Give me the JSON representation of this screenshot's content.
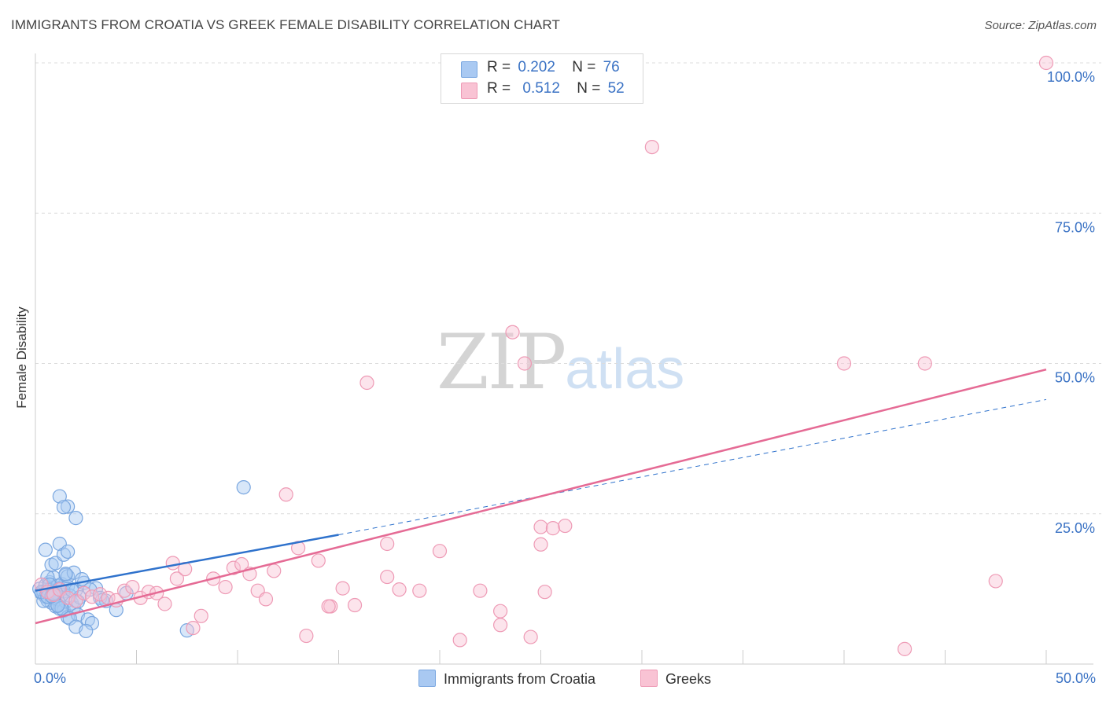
{
  "title": "IMMIGRANTS FROM CROATIA VS GREEK FEMALE DISABILITY CORRELATION CHART",
  "source": "Source: ZipAtlas.com",
  "watermark": {
    "part1": "ZIP",
    "part2": "atlas"
  },
  "legend": {
    "rows": [
      {
        "r_label": "R =",
        "r_value": "0.202",
        "n_label": "N =",
        "n_value": "76",
        "color": "#a9c9f2",
        "border": "#7aa7e0"
      },
      {
        "r_label": "R =",
        "r_value": "0.512",
        "n_label": "N =",
        "n_value": "52",
        "color": "#f9c3d4",
        "border": "#ee9ab5"
      }
    ]
  },
  "chart_data": {
    "type": "scatter",
    "title": "IMMIGRANTS FROM CROATIA VS GREEK FEMALE DISABILITY CORRELATION CHART",
    "xlabel": "",
    "ylabel": "Female Disability",
    "xlim": [
      0,
      50
    ],
    "ylim": [
      0,
      100
    ],
    "x_tick_labels": [
      "0.0%",
      "50.0%"
    ],
    "y_tick_labels": [
      "100.0%",
      "75.0%",
      "50.0%",
      "25.0%"
    ],
    "y_ticks": [
      100,
      75,
      50,
      25
    ],
    "x_minor_ticks": [
      0,
      5,
      10,
      15,
      20,
      25,
      30,
      35,
      40,
      45,
      50
    ],
    "grid": true,
    "legend_position": "top-center",
    "series": [
      {
        "name": "Immigrants from Croatia",
        "color": "#7aa7e0",
        "fill": "#a9c9f2",
        "line_color": "#2f72cc",
        "trend": {
          "x0": 0,
          "y0": 12.2,
          "x1": 15,
          "y1": 21.5,
          "dashed_to_x": 50,
          "dashed_to_y": 44.0
        },
        "x": [
          0.2,
          0.3,
          0.4,
          0.5,
          0.5,
          0.6,
          0.6,
          0.7,
          0.7,
          0.8,
          0.8,
          0.9,
          0.9,
          1.0,
          1.0,
          1.1,
          1.1,
          1.2,
          1.2,
          1.3,
          1.3,
          1.4,
          1.4,
          1.5,
          1.5,
          1.6,
          1.6,
          1.7,
          1.8,
          1.9,
          2.0,
          2.1,
          2.2,
          2.4,
          2.6,
          2.8,
          3.0,
          3.2,
          3.5,
          4.0,
          4.5,
          0.4,
          0.6,
          0.8,
          1.0,
          1.2,
          1.4,
          1.6,
          1.9,
          2.3,
          0.5,
          0.9,
          1.1,
          1.3,
          1.7,
          2.0,
          2.5,
          0.3,
          0.7,
          1.5,
          1.8,
          2.1,
          0.6,
          1.0,
          1.2,
          1.6,
          1.1,
          0.8,
          2.0,
          1.4,
          1.6,
          7.5,
          10.3,
          2.7,
          3.3,
          0.9
        ],
        "y": [
          12.5,
          11.8,
          12.0,
          13.1,
          11.2,
          12.4,
          10.6,
          13.6,
          11.9,
          12.7,
          10.2,
          14.4,
          11.0,
          12.2,
          9.6,
          13.0,
          10.8,
          12.6,
          9.2,
          13.3,
          11.5,
          12.1,
          8.9,
          14.8,
          10.4,
          12.9,
          7.8,
          11.4,
          10.1,
          9.4,
          12.3,
          8.2,
          11.1,
          13.5,
          7.4,
          6.8,
          12.6,
          11.0,
          10.5,
          9.0,
          11.8,
          10.5,
          14.5,
          16.5,
          16.8,
          20.0,
          18.2,
          14.6,
          15.2,
          14.1,
          19.0,
          11.6,
          9.8,
          9.3,
          7.6,
          6.2,
          5.5,
          12.0,
          13.2,
          15.0,
          12.3,
          10.4,
          11.2,
          11.9,
          27.9,
          26.2,
          9.7,
          11.3,
          24.3,
          26.1,
          18.7,
          5.6,
          29.4,
          12.4,
          10.6,
          11.7
        ]
      },
      {
        "name": "Greeks",
        "color": "#ee9ab5",
        "fill": "#f9c3d4",
        "line_color": "#e56b95",
        "trend": {
          "x0": 0,
          "y0": 6.8,
          "x1": 50,
          "y1": 49.0
        },
        "x": [
          0.3,
          0.6,
          0.9,
          1.2,
          1.6,
          2.0,
          2.4,
          2.8,
          3.2,
          3.6,
          4.0,
          4.4,
          4.8,
          5.2,
          5.6,
          6.0,
          6.4,
          6.8,
          7.0,
          7.4,
          7.8,
          8.2,
          8.8,
          9.4,
          9.8,
          10.2,
          10.6,
          11.0,
          11.4,
          11.8,
          12.4,
          13.0,
          13.4,
          14.0,
          14.6,
          15.2,
          15.8,
          16.4,
          17.4,
          18.0,
          19.0,
          20.0,
          21.0,
          22.0,
          23.0,
          23.6,
          24.2,
          25.0,
          25.6,
          26.2,
          40.0,
          47.5,
          43.0,
          30.5,
          50.0,
          44.0,
          17.4,
          14.5,
          23.0,
          24.5,
          25.0,
          25.2
        ],
        "y": [
          13.2,
          12.0,
          11.5,
          12.4,
          11.0,
          10.5,
          11.8,
          11.2,
          11.6,
          11.0,
          10.6,
          12.2,
          12.8,
          11.0,
          12.0,
          11.8,
          10.0,
          16.8,
          14.2,
          15.8,
          6.0,
          8.0,
          14.2,
          12.8,
          16.0,
          16.6,
          15.0,
          12.2,
          10.8,
          15.5,
          28.2,
          19.3,
          4.7,
          17.2,
          9.6,
          12.6,
          9.8,
          46.8,
          14.5,
          12.4,
          12.2,
          18.8,
          4.0,
          12.2,
          6.5,
          55.2,
          50.0,
          22.8,
          22.6,
          23.0,
          50.0,
          13.8,
          2.5,
          86.0,
          100.0,
          50.0,
          20.0,
          9.6,
          8.8,
          4.5,
          19.9,
          12.0
        ]
      }
    ]
  },
  "bottom_legend": [
    {
      "label": "Immigrants from Croatia",
      "color": "#a9c9f2",
      "border": "#7aa7e0"
    },
    {
      "label": "Greeks",
      "color": "#f9c3d4",
      "border": "#ee9ab5"
    }
  ]
}
